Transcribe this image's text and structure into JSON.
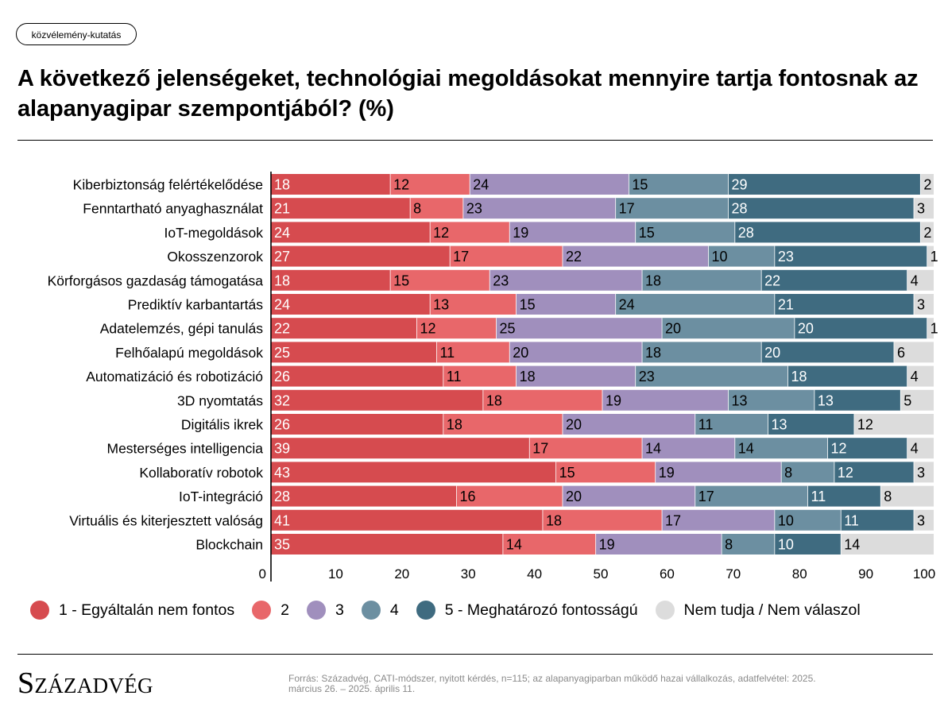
{
  "tag": "közvélemény-kutatás",
  "title": "A következő jelenségeket, technológiai megoldásokat mennyire tartja fontosnak az alapanyagipar szempontjából? (%)",
  "brand": "Századvég",
  "source": "Forrás: Századvég, CATI-módszer, nyitott kérdés, n=115; az alapanyagiparban működő hazai vállalkozás, adatfelvétel: 2025. március 26. – 2025. április 11.",
  "legend": [
    {
      "label": "1 - Egyáltalán nem fontos",
      "color": "#d64b4f"
    },
    {
      "label": "2",
      "color": "#e8676a"
    },
    {
      "label": "3",
      "color": "#a08fbd"
    },
    {
      "label": "4",
      "color": "#6c8fa1"
    },
    {
      "label": "5 - Meghatározó fontosságú",
      "color": "#3f6b80"
    },
    {
      "label": "Nem tudja / Nem válaszol",
      "color": "#dcdcdc"
    }
  ],
  "chart_data": {
    "type": "bar",
    "orientation": "horizontal",
    "stacked": true,
    "xlim": [
      0,
      100
    ],
    "xticks": [
      0,
      10,
      20,
      30,
      40,
      50,
      60,
      70,
      80,
      90,
      100
    ],
    "categories": [
      "Kiberbiztonság felértékelődése",
      "Fenntartható anyaghasználat",
      "IoT-megoldások",
      "Okosszenzorok",
      "Körforgásos gazdaság támogatása",
      "Prediktív karbantartás",
      "Adatelemzés, gépi tanulás",
      "Felhőalapú megoldások",
      "Automatizáció és robotizáció",
      "3D nyomtatás",
      "Digitális ikrek",
      "Mesterséges intelligencia",
      "Kollaboratív robotok",
      "IoT-integráció",
      "Virtuális és kiterjesztett valóság",
      "Blockchain"
    ],
    "series": [
      {
        "name": "1 - Egyáltalán nem fontos",
        "color": "#d64b4f",
        "text_color": "#ffffff",
        "values": [
          18,
          21,
          24,
          27,
          18,
          24,
          22,
          25,
          26,
          32,
          26,
          39,
          43,
          28,
          41,
          35
        ]
      },
      {
        "name": "2",
        "color": "#e8676a",
        "text_color": "#000000",
        "values": [
          12,
          8,
          12,
          17,
          15,
          13,
          12,
          11,
          11,
          18,
          18,
          17,
          15,
          16,
          18,
          14
        ]
      },
      {
        "name": "3",
        "color": "#a08fbd",
        "text_color": "#000000",
        "values": [
          24,
          23,
          19,
          22,
          23,
          15,
          25,
          20,
          18,
          19,
          20,
          14,
          19,
          20,
          17,
          19
        ]
      },
      {
        "name": "4",
        "color": "#6c8fa1",
        "text_color": "#000000",
        "values": [
          15,
          17,
          15,
          10,
          18,
          24,
          20,
          18,
          23,
          13,
          11,
          14,
          8,
          17,
          10,
          8
        ]
      },
      {
        "name": "5 - Meghatározó fontosságú",
        "color": "#3f6b80",
        "text_color": "#ffffff",
        "values": [
          29,
          28,
          28,
          23,
          22,
          21,
          20,
          20,
          18,
          13,
          13,
          12,
          12,
          11,
          11,
          10
        ]
      },
      {
        "name": "Nem tudja / Nem válaszol",
        "color": "#dcdcdc",
        "text_color": "#000000",
        "values": [
          2,
          3,
          2,
          1,
          4,
          3,
          1,
          6,
          4,
          5,
          12,
          4,
          3,
          8,
          3,
          14
        ]
      }
    ]
  }
}
